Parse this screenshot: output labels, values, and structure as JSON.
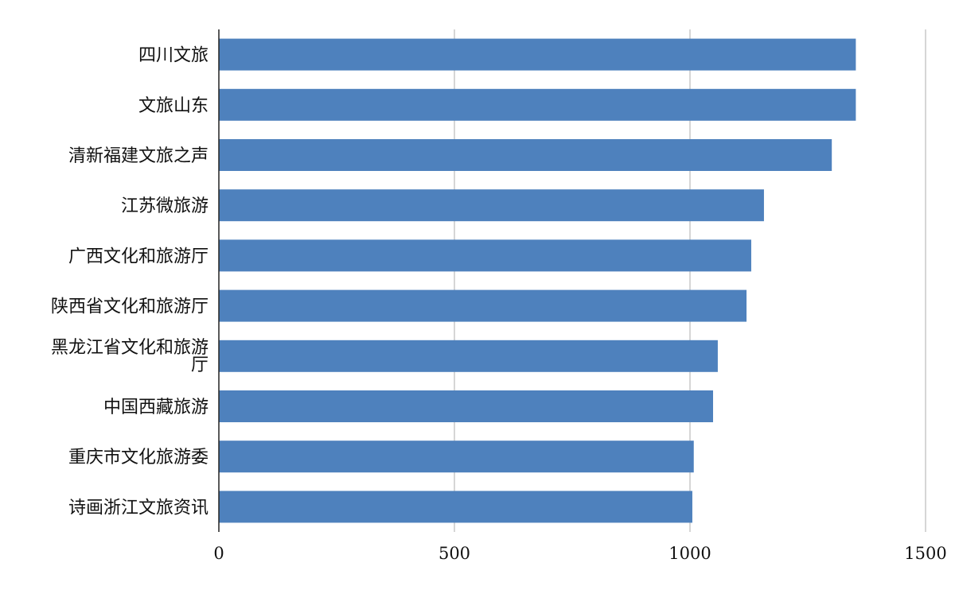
{
  "chart_data": {
    "type": "bar",
    "orientation": "horizontal",
    "title": "",
    "xlabel": "",
    "ylabel": "",
    "categories": [
      "四川文旅",
      "文旅山东",
      "清新福建文旅之声",
      "江苏微旅游",
      "广西文化和旅游厅",
      "陕西省文化和旅游厅",
      "黑龙江省文化和旅游厅",
      "中国西藏旅游",
      "重庆市文化旅游委",
      "诗画浙江文旅资讯"
    ],
    "values": [
      1352,
      1352,
      1301,
      1157,
      1130,
      1120,
      1059,
      1049,
      1008,
      1005
    ],
    "xlim": [
      0,
      1500
    ],
    "xticks": [
      0,
      500,
      1000,
      1500
    ],
    "xtick_labels": [
      "0",
      "500",
      "1000",
      "1500"
    ],
    "grid": true,
    "legend": "none",
    "bar_color": "#4e81bd"
  }
}
